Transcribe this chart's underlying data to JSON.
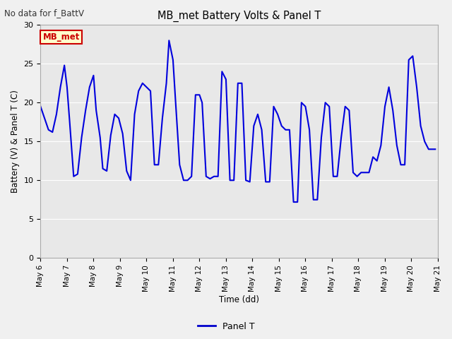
{
  "title": "MB_met Battery Volts & Panel T",
  "no_data_label": "No data for f_BattV",
  "ylabel": "Battery (V) & Panel T (C)",
  "xlabel": "Time (dd)",
  "legend_label": "Panel T",
  "legend_color": "#0000cc",
  "line_color": "#0000dd",
  "line_width": 1.5,
  "annotation_label": "MB_met",
  "annotation_bg": "#ffffcc",
  "annotation_border": "#cc0000",
  "annotation_text_color": "#cc0000",
  "ylim": [
    0,
    30
  ],
  "yticks": [
    0,
    5,
    10,
    15,
    20,
    25,
    30
  ],
  "x_start_day": 6,
  "x_end_day": 21,
  "xtick_days": [
    6,
    7,
    8,
    9,
    10,
    11,
    12,
    13,
    14,
    15,
    16,
    17,
    18,
    19,
    20,
    21
  ],
  "xtick_labels": [
    "May 6",
    "May 7",
    "May 8",
    "May 9",
    "May 10",
    "May 11",
    "May 12",
    "May 13",
    "May 14",
    "May 15",
    "May 16",
    "May 17",
    "May 18",
    "May 19",
    "May 20",
    "May 21"
  ],
  "bg_color": "#e8e8e8",
  "fig_bg": "#f0f0f0",
  "panel_t_x": [
    6.0,
    6.15,
    6.3,
    6.45,
    6.6,
    6.75,
    6.9,
    7.0,
    7.1,
    7.25,
    7.4,
    7.55,
    7.7,
    7.85,
    8.0,
    8.1,
    8.25,
    8.35,
    8.5,
    8.65,
    8.8,
    8.95,
    9.1,
    9.25,
    9.4,
    9.55,
    9.7,
    9.85,
    10.0,
    10.15,
    10.3,
    10.45,
    10.6,
    10.75,
    10.85,
    11.0,
    11.1,
    11.25,
    11.4,
    11.55,
    11.7,
    11.85,
    12.0,
    12.1,
    12.25,
    12.4,
    12.55,
    12.7,
    12.85,
    13.0,
    13.15,
    13.3,
    13.45,
    13.6,
    13.75,
    13.9,
    14.05,
    14.2,
    14.35,
    14.5,
    14.65,
    14.8,
    14.95,
    15.1,
    15.25,
    15.4,
    15.55,
    15.7,
    15.85,
    16.0,
    16.15,
    16.3,
    16.45,
    16.6,
    16.75,
    16.9,
    17.05,
    17.2,
    17.35,
    17.5,
    17.65,
    17.8,
    17.95,
    18.1,
    18.25,
    18.4,
    18.55,
    18.7,
    18.85,
    19.0,
    19.15,
    19.3,
    19.45,
    19.6,
    19.75,
    19.9,
    20.05,
    20.2,
    20.35,
    20.5,
    20.65,
    20.8,
    20.9
  ],
  "panel_t_y": [
    19.5,
    18.0,
    16.5,
    16.2,
    18.5,
    22.0,
    24.8,
    22.0,
    17.5,
    10.5,
    10.8,
    15.5,
    19.0,
    22.0,
    23.5,
    19.0,
    15.5,
    11.5,
    11.2,
    15.8,
    18.5,
    18.0,
    16.0,
    11.2,
    10.0,
    18.5,
    21.5,
    22.5,
    22.0,
    21.5,
    12.0,
    12.0,
    18.0,
    22.5,
    28.0,
    25.5,
    20.0,
    12.0,
    10.0,
    10.0,
    10.5,
    21.0,
    21.0,
    20.0,
    10.5,
    10.2,
    10.5,
    10.5,
    24.0,
    23.0,
    10.0,
    10.0,
    22.5,
    22.5,
    10.0,
    9.8,
    17.0,
    18.5,
    16.5,
    9.8,
    9.8,
    19.5,
    18.5,
    17.0,
    16.5,
    16.5,
    7.2,
    7.2,
    20.0,
    19.5,
    16.5,
    7.5,
    7.5,
    15.5,
    20.0,
    19.5,
    10.5,
    10.5,
    15.5,
    19.5,
    19.0,
    11.0,
    10.5,
    11.0,
    11.0,
    11.0,
    13.0,
    12.5,
    14.5,
    19.5,
    22.0,
    19.0,
    14.5,
    12.0,
    12.0,
    25.5,
    26.0,
    22.0,
    17.0,
    15.0,
    14.0,
    14.0,
    14.0
  ]
}
